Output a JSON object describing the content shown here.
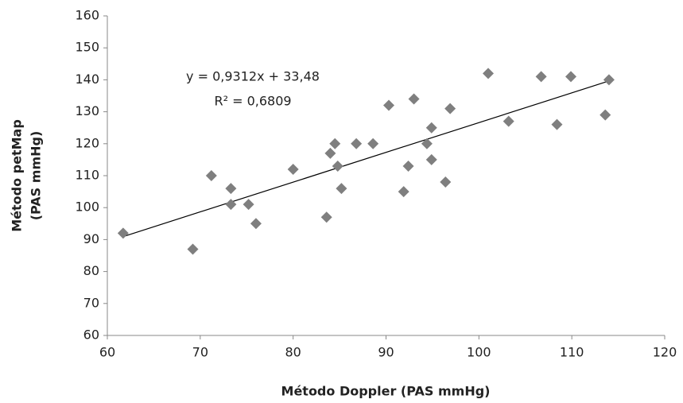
{
  "chart_data": {
    "type": "scatter",
    "x_label": "Método Doppler (PAS mmHg)",
    "y_label": [
      "Método petMap",
      "(PAS mmHg)"
    ],
    "x": [
      61.7,
      69.2,
      71.2,
      73.3,
      73.3,
      75.2,
      76.0,
      80.0,
      83.6,
      84.0,
      84.5,
      84.8,
      85.2,
      86.8,
      88.6,
      90.3,
      91.9,
      92.4,
      93.0,
      94.4,
      94.9,
      94.9,
      96.4,
      96.9,
      101.0,
      103.2,
      106.7,
      108.4,
      109.9,
      113.6,
      114.0
    ],
    "series": [
      {
        "color": "#7f7f7f",
        "values": [
          92,
          87,
          110,
          106,
          101,
          101,
          95,
          112,
          97,
          117,
          120,
          113,
          106,
          120,
          120,
          132,
          105,
          113,
          134,
          120,
          125,
          115,
          108,
          131,
          142,
          127,
          141,
          126,
          141,
          129,
          140
        ]
      }
    ],
    "trendline": {
      "slope": 0.9312,
      "intercept": 33.48,
      "color": "#000000",
      "equation": "y = 0,9312x + 33,48",
      "r2_label": "R² = 0,6809"
    },
    "xlim": [
      60,
      120
    ],
    "xticks": [
      60,
      70,
      80,
      90,
      100,
      110,
      120
    ],
    "ylim": [
      60,
      160
    ],
    "yticks": [
      60,
      70,
      80,
      90,
      100,
      110,
      120,
      130,
      140,
      150,
      160
    ],
    "grid": false
  }
}
